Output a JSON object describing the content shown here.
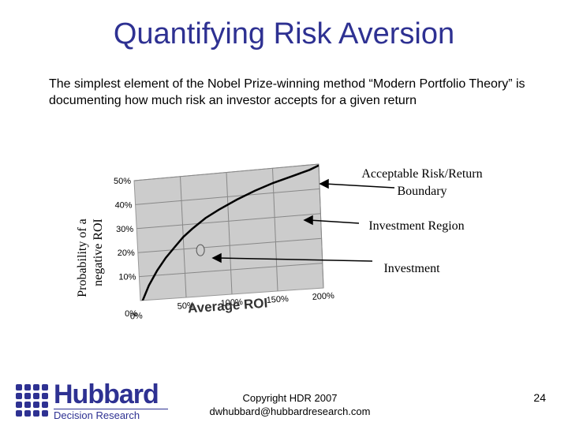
{
  "slide": {
    "title": "Quantifying Risk Aversion",
    "subtitle": "The simplest element of the Nobel Prize-winning method “Modern Portfolio Theory” is documenting how much risk an investor accepts for a given return",
    "callouts": {
      "boundary_line1": "Acceptable Risk/Return",
      "boundary_line2": "Boundary",
      "region": "Investment Region",
      "investment": "Investment"
    },
    "footer": {
      "copyright": "Copyright HDR 2007",
      "email": "dwhubbard@hubbardresearch.com",
      "page_number": "24"
    },
    "logo": {
      "name": "Hubbard",
      "tagline": "Decision Research"
    }
  },
  "chart_data": {
    "type": "line",
    "xlabel": "Average ROI",
    "ylabel_line1": "Probability of a",
    "ylabel_line2": "negative ROI",
    "x_ticks": [
      "0%",
      "50%",
      "100%",
      "150%",
      "200%"
    ],
    "y_ticks": [
      "0%",
      "10%",
      "20%",
      "30%",
      "40%",
      "50%"
    ],
    "xlim": [
      0,
      200
    ],
    "ylim": [
      0,
      50
    ],
    "grid": true,
    "series": [
      {
        "x": [
          0,
          10,
          20,
          30,
          40,
          50,
          60,
          75,
          90,
          110,
          130,
          150,
          170,
          190,
          200
        ],
        "values": [
          -2,
          6,
          12,
          17,
          21,
          25,
          28,
          32,
          35,
          38.5,
          41.5,
          44,
          46,
          48,
          49.5
        ]
      }
    ],
    "investment_point": {
      "x": 68,
      "y": 19
    },
    "colors": {
      "plot_bg": "#cccccc",
      "title": "#2e3192",
      "curve": "#000000"
    }
  }
}
